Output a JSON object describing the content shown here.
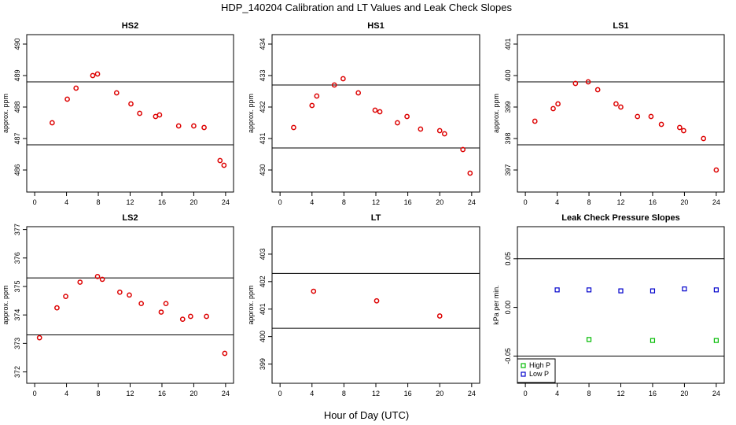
{
  "figure": {
    "title": "HDP_140204  Calibration and LT Values and Leak Check Slopes",
    "xlabel": "Hour of Day (UTC)"
  },
  "chart_data": [
    {
      "type": "scatter",
      "title": "HS2",
      "ylabel": "approx. ppm",
      "xlim": [
        -1,
        25
      ],
      "ylim": [
        485.3,
        490.3
      ],
      "xticks": [
        0,
        4,
        8,
        12,
        16,
        20,
        24
      ],
      "yticks": [
        486,
        487,
        488,
        489,
        490
      ],
      "hlines": [
        486.8,
        488.8
      ],
      "series": [
        {
          "color": "#dd0000",
          "marker": "circle",
          "x": [
            2.2,
            4.1,
            5.2,
            7.3,
            7.9,
            10.3,
            12.1,
            13.2,
            15.2,
            15.7,
            18.1,
            20.0,
            21.3,
            23.3,
            23.8
          ],
          "y": [
            487.5,
            488.25,
            488.6,
            489.0,
            489.05,
            488.45,
            488.1,
            487.8,
            487.7,
            487.75,
            487.4,
            487.4,
            487.35,
            486.3,
            486.15
          ]
        }
      ]
    },
    {
      "type": "scatter",
      "title": "HS1",
      "ylabel": "approx. ppm",
      "xlim": [
        -1,
        25
      ],
      "ylim": [
        429.3,
        434.3
      ],
      "xticks": [
        0,
        4,
        8,
        12,
        16,
        20,
        24
      ],
      "yticks": [
        430,
        431,
        432,
        433,
        434
      ],
      "hlines": [
        430.7,
        432.7
      ],
      "series": [
        {
          "color": "#dd0000",
          "marker": "circle",
          "x": [
            1.7,
            4.0,
            4.6,
            6.8,
            7.9,
            9.8,
            11.9,
            12.5,
            14.7,
            15.9,
            17.6,
            20.0,
            20.6,
            22.9,
            23.8
          ],
          "y": [
            431.35,
            432.05,
            432.35,
            432.7,
            432.9,
            432.45,
            431.9,
            431.85,
            431.5,
            431.7,
            431.3,
            431.25,
            431.15,
            430.65,
            429.9
          ]
        }
      ]
    },
    {
      "type": "scatter",
      "title": "LS1",
      "ylabel": "approx. ppm",
      "xlim": [
        -1,
        25
      ],
      "ylim": [
        396.3,
        401.3
      ],
      "xticks": [
        0,
        4,
        8,
        12,
        16,
        20,
        24
      ],
      "yticks": [
        397,
        398,
        399,
        400,
        401
      ],
      "hlines": [
        397.8,
        399.8
      ],
      "series": [
        {
          "color": "#dd0000",
          "marker": "circle",
          "x": [
            1.2,
            3.5,
            4.1,
            6.3,
            7.9,
            9.1,
            11.4,
            12.0,
            14.1,
            15.8,
            17.1,
            19.4,
            19.9,
            22.4,
            24.0
          ],
          "y": [
            398.55,
            398.95,
            399.1,
            399.75,
            399.8,
            399.55,
            399.1,
            399.0,
            398.7,
            398.7,
            398.45,
            398.35,
            398.25,
            398.0,
            397.0
          ]
        }
      ]
    },
    {
      "type": "scatter",
      "title": "LS2",
      "ylabel": "approx. ppm",
      "xlim": [
        -1,
        25
      ],
      "ylim": [
        371.6,
        377.1
      ],
      "xticks": [
        0,
        4,
        8,
        12,
        16,
        20,
        24
      ],
      "yticks": [
        372,
        373,
        374,
        375,
        376,
        377
      ],
      "hlines": [
        373.3,
        375.3
      ],
      "series": [
        {
          "color": "#dd0000",
          "marker": "circle",
          "x": [
            0.6,
            2.8,
            3.9,
            5.7,
            7.9,
            8.5,
            10.7,
            11.9,
            13.4,
            15.9,
            16.5,
            18.6,
            19.6,
            21.6,
            23.9
          ],
          "y": [
            373.2,
            374.25,
            374.65,
            375.15,
            375.35,
            375.25,
            374.8,
            374.7,
            374.4,
            374.1,
            374.4,
            373.85,
            373.95,
            373.95,
            372.65
          ]
        }
      ]
    },
    {
      "type": "scatter",
      "title": "LT",
      "ylabel": "approx. ppm",
      "xlim": [
        -1,
        25
      ],
      "ylim": [
        398.3,
        404.0
      ],
      "xticks": [
        0,
        4,
        8,
        12,
        16,
        20,
        24
      ],
      "yticks": [
        399,
        400,
        401,
        402,
        403
      ],
      "hlines": [
        400.3,
        402.3
      ],
      "series": [
        {
          "color": "#dd0000",
          "marker": "circle",
          "x": [
            4.2,
            12.1,
            20.0
          ],
          "y": [
            401.65,
            401.3,
            400.75
          ]
        }
      ]
    },
    {
      "type": "scatter",
      "title": "Leak Check Pressure Slopes",
      "ylabel": "kPa per min.",
      "xlim": [
        -1,
        25
      ],
      "ylim": [
        -0.078,
        0.083
      ],
      "xticks": [
        0,
        4,
        8,
        12,
        16,
        20,
        24
      ],
      "yticks": [
        -0.05,
        0.0,
        0.05
      ],
      "yticklabels": [
        "-0.05",
        "0.00",
        "0.05"
      ],
      "hlines": [
        -0.05,
        0.05
      ],
      "legend": "bottom-left",
      "series": [
        {
          "name": "High P",
          "color": "#00bb00",
          "marker": "square",
          "x": [
            8.0,
            16.0,
            24.0
          ],
          "y": [
            -0.033,
            -0.034,
            -0.034
          ]
        },
        {
          "name": "Low P",
          "color": "#0000cc",
          "marker": "square",
          "x": [
            4.0,
            8.0,
            12.0,
            16.0,
            20.0,
            24.0
          ],
          "y": [
            0.018,
            0.018,
            0.017,
            0.017,
            0.019,
            0.018
          ]
        }
      ]
    }
  ]
}
